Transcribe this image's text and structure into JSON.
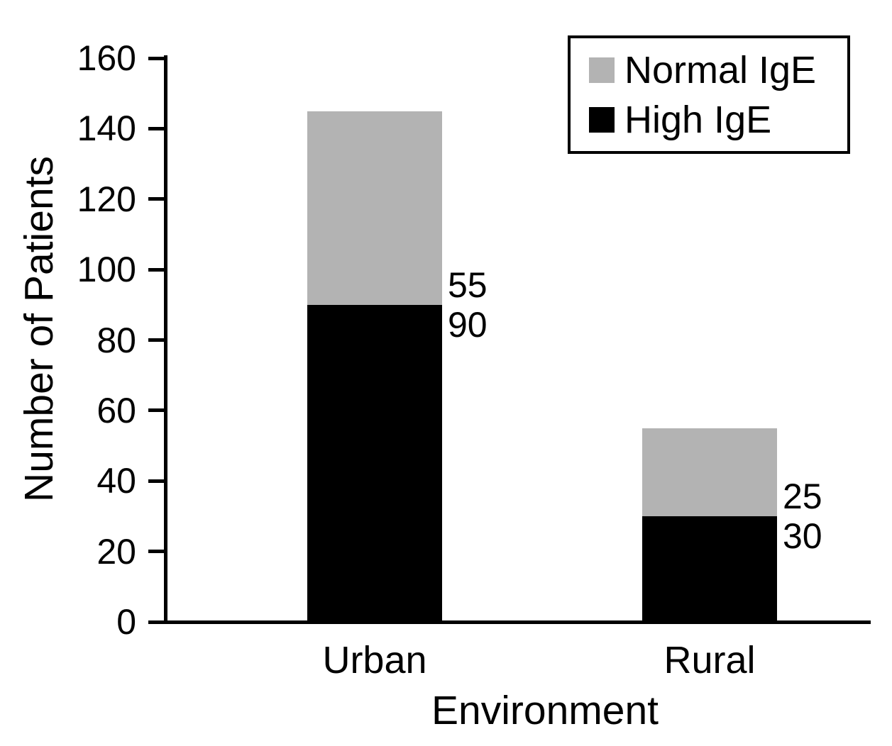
{
  "chart_data": {
    "type": "bar",
    "stacked": true,
    "title": "",
    "xlabel": "Environment",
    "ylabel": "Number of Patients",
    "categories": [
      "Urban",
      "Rural"
    ],
    "series": [
      {
        "name": "High IgE",
        "color": "#000000",
        "values": [
          90,
          30
        ]
      },
      {
        "name": "Normal IgE",
        "color": "#b3b3b3",
        "values": [
          55,
          25
        ]
      }
    ],
    "segment_value_labels": {
      "Urban": {
        "Normal IgE": 55,
        "High IgE": 90
      },
      "Rural": {
        "Normal IgE": 25,
        "High IgE": 30
      }
    },
    "ylim": [
      0,
      160
    ],
    "yticks": [
      0,
      20,
      40,
      60,
      80,
      100,
      120,
      140,
      160
    ],
    "grid": false,
    "legend_position": "upper right",
    "legend_entries": [
      "Normal IgE",
      "High IgE"
    ]
  },
  "colors": {
    "background": "#ffffff",
    "axis": "#000000",
    "text": "#000000",
    "normal_ige": "#b3b3b3",
    "high_ige": "#000000"
  }
}
